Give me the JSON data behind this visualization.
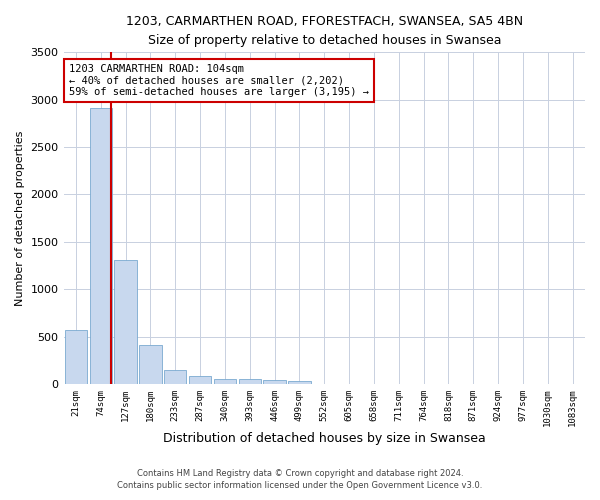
{
  "title_line1": "1203, CARMARTHEN ROAD, FFORESTFACH, SWANSEA, SA5 4BN",
  "title_line2": "Size of property relative to detached houses in Swansea",
  "xlabel": "Distribution of detached houses by size in Swansea",
  "ylabel": "Number of detached properties",
  "footer_line1": "Contains HM Land Registry data © Crown copyright and database right 2024.",
  "footer_line2": "Contains public sector information licensed under the Open Government Licence v3.0.",
  "bin_labels": [
    "21sqm",
    "74sqm",
    "127sqm",
    "180sqm",
    "233sqm",
    "287sqm",
    "340sqm",
    "393sqm",
    "446sqm",
    "499sqm",
    "552sqm",
    "605sqm",
    "658sqm",
    "711sqm",
    "764sqm",
    "818sqm",
    "871sqm",
    "924sqm",
    "977sqm",
    "1030sqm",
    "1083sqm"
  ],
  "bar_values": [
    570,
    2910,
    1310,
    415,
    150,
    85,
    55,
    50,
    40,
    35,
    0,
    0,
    0,
    0,
    0,
    0,
    0,
    0,
    0,
    0,
    0
  ],
  "bar_color": "#c8d8ee",
  "bar_edge_color": "#7aaad0",
  "grid_color": "#c8d0e0",
  "property_label": "1203 CARMARTHEN ROAD: 104sqm",
  "pct_smaller": 40,
  "n_smaller": 2202,
  "pct_larger": 59,
  "n_larger": 3195,
  "annotation_box_color": "#ffffff",
  "annotation_border_color": "#cc0000",
  "vline_color": "#cc0000",
  "vline_position": 1.42,
  "ylim": [
    0,
    3500
  ],
  "yticks": [
    0,
    500,
    1000,
    1500,
    2000,
    2500,
    3000,
    3500
  ],
  "bg_color": "#ffffff"
}
